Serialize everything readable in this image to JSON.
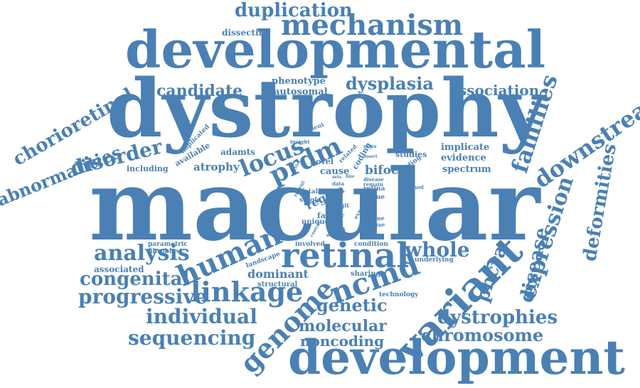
{
  "color": "#4a80b4",
  "words": [
    "macular",
    "dystrophy",
    "developmental",
    "development",
    "retinal",
    "variant",
    "mechanism",
    "duplication",
    "human",
    "linkage",
    "ncmd",
    "genome",
    "locus",
    "prdm",
    "families",
    "downstream",
    "expression",
    "deformities",
    "chorioretinal",
    "abnormalities",
    "disorder",
    "analysis",
    "congenital",
    "progressive",
    "individual",
    "sequencing",
    "candidate",
    "dysplasia",
    "association",
    "whole",
    "genetic",
    "dystrophies",
    "chromosome",
    "molecular",
    "noncoding",
    "disease",
    "pbcra",
    "dominant",
    "spectrum",
    "evidence",
    "implicate",
    "studies",
    "bifocal",
    "cause",
    "region",
    "atrophy",
    "adamts",
    "phenotype",
    "autosomal",
    "dissecting",
    "associated",
    "parametric",
    "fibroblast",
    "landscape",
    "structural",
    "sharing",
    "underlying",
    "technology",
    "condition",
    "involved",
    "including",
    "available",
    "implicated",
    "patient",
    "insight",
    "novel",
    "coding",
    "related",
    "finding",
    "family",
    "unique",
    "single",
    "fetal",
    "recent",
    "data",
    "rare",
    "digit",
    "retina",
    "tissue",
    "exome",
    "mouse",
    "event",
    "mutant",
    "method",
    "remain",
    "disease",
    "sets",
    "active",
    "control",
    "insert",
    "share",
    "fine"
  ]
}
